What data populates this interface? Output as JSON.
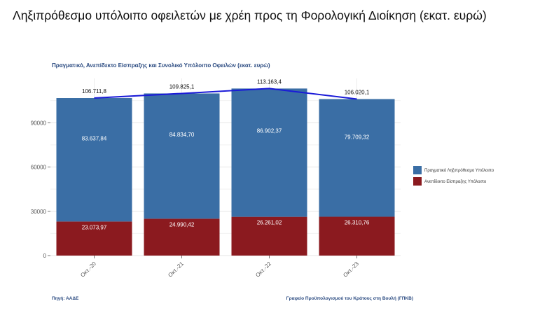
{
  "page_title": "Ληξιπρόθεσμο υπόλοιπο οφειλετών με χρέη προς τη Φορολογική Διοίκηση (εκατ. ευρώ)",
  "chart_data": {
    "type": "bar",
    "stacked": true,
    "title": "Πραγματικό, Ανεπίδεκτο Είσπραξης και Συνολικό Υπόλοιπο Οφειλών (εκατ. ευρώ)",
    "categories": [
      "Οκτ.-20",
      "Οκτ.-21",
      "Οκτ.-22",
      "Οκτ.-23"
    ],
    "series": [
      {
        "name": "Ανεπίδεκτο Είσπραξης Υπόλοιπο",
        "values": [
          23073.97,
          24990.42,
          26261.02,
          26310.76
        ],
        "labels": [
          "23.073,97",
          "24.990,42",
          "26.261,02",
          "26.310,76"
        ],
        "color": "#8b1a1f"
      },
      {
        "name": "Πραγματικό Ληξιπρόθεσμο Υπόλοιπο",
        "values": [
          83637.84,
          84834.7,
          86902.37,
          79709.32
        ],
        "labels": [
          "83.637,84",
          "84.834,70",
          "86.902,37",
          "79.709,32"
        ],
        "color": "#3a6ea5"
      }
    ],
    "totals": {
      "values": [
        106711.8,
        109825.1,
        113163.4,
        106020.1
      ],
      "labels": [
        "106.711,8",
        "109.825,1",
        "113.163,4",
        "106.020,1"
      ],
      "line_color": "#1a1ad8"
    },
    "y_ticks": [
      0,
      30000,
      60000,
      90000
    ],
    "ylim": [
      0,
      120000
    ],
    "grid": true,
    "legend_position": "right"
  },
  "footer": {
    "source": "Πηγή: ΑΑΔΕ",
    "office": "Γραφείο Προϋπολογισμού του Κράτους στη Βουλή (ΓΠΚΒ)"
  }
}
